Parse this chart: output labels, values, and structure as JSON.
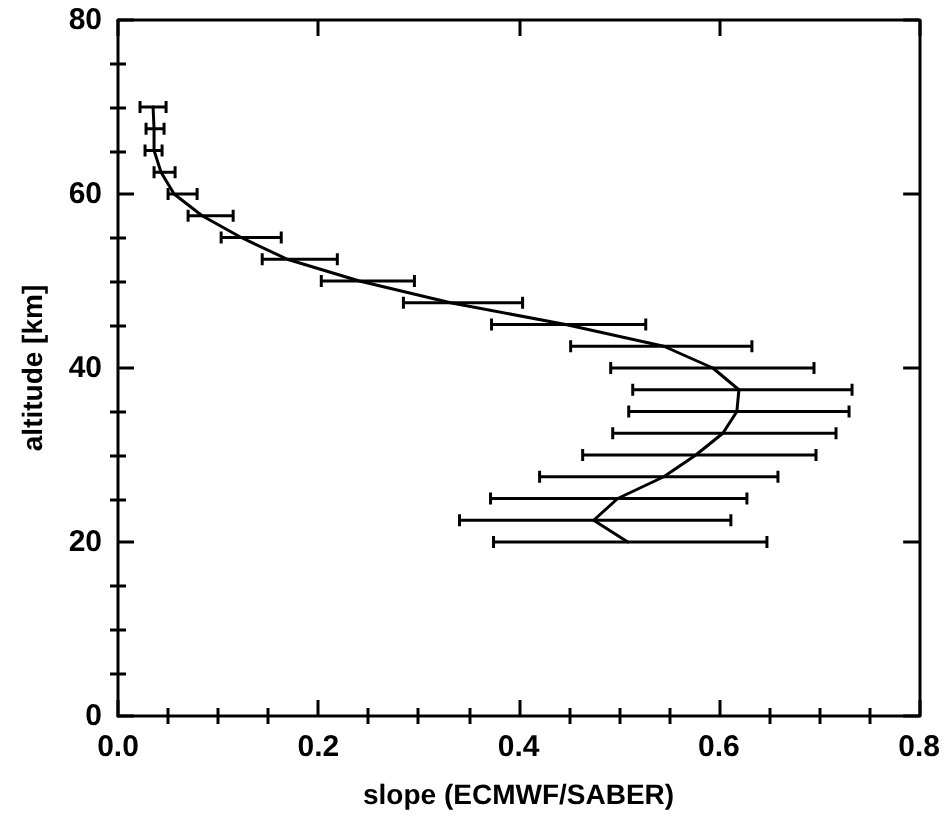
{
  "chart_data": {
    "type": "line",
    "xlabel": "slope (ECMWF/SABER)",
    "ylabel": "altitude [km]",
    "x": [
      0.509,
      0.475,
      0.499,
      0.545,
      0.577,
      0.604,
      0.618,
      0.62,
      0.594,
      0.545,
      0.447,
      0.332,
      0.241,
      0.169,
      0.123,
      0.084,
      0.056,
      0.043,
      0.036,
      0.036,
      0.035
    ],
    "series": [
      {
        "color": "#000000",
        "values": [
          20,
          22.5,
          25,
          27.5,
          30,
          32.5,
          35,
          37.5,
          40,
          42.5,
          45,
          47.5,
          50,
          52.5,
          55,
          57.5,
          60,
          62.5,
          65,
          67.5,
          70
        ],
        "xerrors": [
          [
            0.375,
            0.648
          ],
          [
            0.341,
            0.612
          ],
          [
            0.372,
            0.628
          ],
          [
            0.421,
            0.659
          ],
          [
            0.464,
            0.697
          ],
          [
            0.494,
            0.717
          ],
          [
            0.51,
            0.73
          ],
          [
            0.514,
            0.733
          ],
          [
            0.492,
            0.695
          ],
          [
            0.452,
            0.633
          ],
          [
            0.373,
            0.527
          ],
          [
            0.285,
            0.404
          ],
          [
            0.203,
            0.296
          ],
          [
            0.144,
            0.219
          ],
          [
            0.103,
            0.163
          ],
          [
            0.07,
            0.115
          ],
          [
            0.05,
            0.079
          ],
          [
            0.036,
            0.057
          ],
          [
            0.027,
            0.044
          ],
          [
            0.028,
            0.046
          ],
          [
            0.022,
            0.048
          ]
        ]
      }
    ],
    "xlim": [
      0,
      0.8
    ],
    "xticks": [
      {
        "value": 0,
        "label": "0.0"
      },
      {
        "value": 0.05,
        "label": null
      },
      {
        "value": 0.1,
        "label": null
      },
      {
        "value": 0.15,
        "label": null
      },
      {
        "value": 0.2,
        "label": "0.2"
      },
      {
        "value": 0.25,
        "label": null
      },
      {
        "value": 0.3,
        "label": null
      },
      {
        "value": 0.35,
        "label": null
      },
      {
        "value": 0.4,
        "label": "0.4"
      },
      {
        "value": 0.45,
        "label": null
      },
      {
        "value": 0.5,
        "label": null
      },
      {
        "value": 0.55,
        "label": null
      },
      {
        "value": 0.6,
        "label": "0.6"
      },
      {
        "value": 0.65,
        "label": null
      },
      {
        "value": 0.7,
        "label": null
      },
      {
        "value": 0.75,
        "label": null
      },
      {
        "value": 0.8,
        "label": "0.8"
      }
    ],
    "ylim": [
      0,
      80
    ],
    "yticks": [
      0,
      {
        "value": 5,
        "label": null
      },
      {
        "value": 10,
        "label": null
      },
      {
        "value": 15,
        "label": null
      },
      20,
      {
        "value": 25,
        "label": null
      },
      {
        "value": 30,
        "label": null
      },
      {
        "value": 35,
        "label": null
      },
      40,
      {
        "value": 45,
        "label": null
      },
      {
        "value": 50,
        "label": null
      },
      {
        "value": 55,
        "label": null
      },
      60,
      {
        "value": 65,
        "label": null
      },
      {
        "value": 70,
        "label": null
      },
      {
        "value": 75,
        "label": null
      },
      80
    ],
    "grid": false,
    "marker": "none",
    "line_style": "solid"
  }
}
